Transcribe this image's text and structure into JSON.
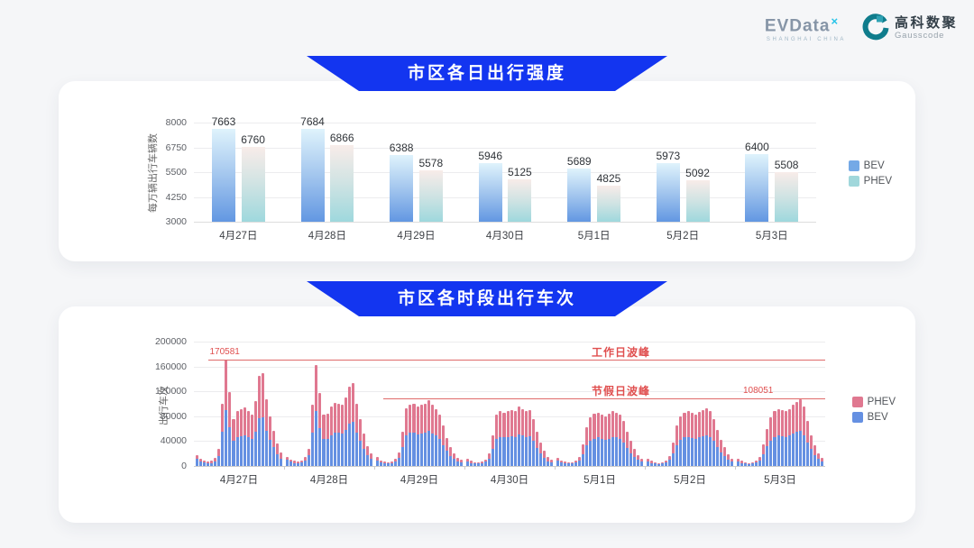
{
  "header": {
    "evdata": {
      "text": "EVData",
      "sup": "×",
      "subtext": "SHANGHAI CHINA"
    },
    "gausscode": {
      "cn": "高科数聚",
      "en": "Gausscode"
    }
  },
  "colors": {
    "banner_blue": "#1335f0",
    "annotation_red": "#e04f4f",
    "annotation_line_red": "#e06a6a",
    "gausscode_teal_dark": "#0f7c8c",
    "gausscode_teal_light": "#2fa3b5"
  },
  "chart_data": [
    {
      "type": "bar",
      "title": "市区各日出行强度",
      "ylabel": "每万辆出行车辆数",
      "xlabel": "",
      "ylim": [
        3000,
        8000
      ],
      "yticks": [
        3000,
        4250,
        5500,
        6750,
        8000
      ],
      "grid": true,
      "legend_position": "right",
      "categories": [
        "4月27日",
        "4月28日",
        "4月29日",
        "4月30日",
        "5月1日",
        "5月2日",
        "5月3日"
      ],
      "series": [
        {
          "name": "BEV",
          "legend_color": "#74a9e6",
          "gradient": [
            "#dff3fc",
            "#a3c6ee",
            "#6297e2"
          ],
          "values": [
            7663,
            7684,
            6388,
            5946,
            5689,
            5973,
            6400
          ]
        },
        {
          "name": "PHEV",
          "legend_color": "#a0d7db",
          "gradient": [
            "#f8ece9",
            "#cfe3e3",
            "#9ed8dd"
          ],
          "values": [
            6760,
            6866,
            5578,
            5125,
            4825,
            5092,
            5508
          ]
        }
      ]
    },
    {
      "type": "stacked-bar",
      "title": "市区各时段出行车次",
      "ylabel": "出行车次",
      "xlabel": "",
      "ylim": [
        0,
        200000
      ],
      "yticks": [
        0,
        40000,
        80000,
        120000,
        160000,
        200000
      ],
      "grid": true,
      "legend_position": "right",
      "hours_per_day": 24,
      "categories": [
        "4月27日",
        "4月28日",
        "4月29日",
        "4月30日",
        "5月1日",
        "5月2日",
        "5月3日"
      ],
      "series": [
        {
          "name": "BEV",
          "color": "#6590e2",
          "days": [
            [
              12000,
              8000,
              6000,
              5000,
              5000,
              8000,
              16000,
              55000,
              90000,
              62000,
              40000,
              46000,
              48000,
              50000,
              47000,
              43000,
              55000,
              77000,
              79000,
              57000,
              42000,
              30000,
              19000,
              12000
            ],
            [
              10000,
              7000,
              5000,
              5000,
              6000,
              9000,
              17000,
              54000,
              88000,
              61000,
              44000,
              44000,
              50000,
              53000,
              53000,
              52000,
              58000,
              68000,
              71000,
              53000,
              40000,
              27000,
              17000,
              11000
            ],
            [
              9000,
              6000,
              5000,
              4000,
              5000,
              7000,
              13000,
              30000,
              50000,
              53000,
              53000,
              51000,
              52000,
              53000,
              56000,
              52000,
              49000,
              44000,
              34000,
              24000,
              16000,
              11000,
              7000,
              6000
            ],
            [
              8000,
              5000,
              4000,
              4000,
              5000,
              7000,
              12000,
              27000,
              44000,
              47000,
              46000,
              47000,
              48000,
              47000,
              51000,
              49000,
              47000,
              48000,
              40000,
              29000,
              20000,
              13000,
              8000,
              6000
            ],
            [
              9000,
              6000,
              5000,
              4000,
              4000,
              6000,
              9000,
              19000,
              33000,
              41000,
              44000,
              46000,
              43000,
              42000,
              44000,
              47000,
              46000,
              43000,
              38000,
              29000,
              21000,
              15000,
              10000,
              7000
            ],
            [
              8000,
              5000,
              4000,
              3000,
              4000,
              6000,
              10000,
              20000,
              34000,
              42000,
              46000,
              47000,
              45000,
              44000,
              46000,
              48000,
              49000,
              47000,
              40000,
              31000,
              22000,
              16000,
              10000,
              7000
            ],
            [
              7000,
              5000,
              4000,
              3000,
              4000,
              6000,
              9000,
              19000,
              32000,
              41000,
              47000,
              49000,
              48000,
              47000,
              49000,
              52000,
              55000,
              57000,
              50000,
              38000,
              27000,
              18000,
              11000,
              7000
            ]
          ]
        },
        {
          "name": "PHEV",
          "color": "#e07890",
          "days": [
            [
              6000,
              4000,
              3000,
              2000,
              3000,
              5000,
              11000,
              45000,
              80581,
              57000,
              36000,
              42000,
              43000,
              44000,
              42000,
              39000,
              49000,
              68000,
              70000,
              51000,
              38000,
              26000,
              17000,
              10000
            ],
            [
              5000,
              3000,
              3000,
              2000,
              3000,
              5000,
              11000,
              44000,
              75000,
              56000,
              39000,
              40000,
              45000,
              48000,
              47000,
              46000,
              52000,
              60000,
              63000,
              47000,
              35000,
              25000,
              15000,
              9000
            ],
            [
              5000,
              3000,
              2000,
              2000,
              2000,
              4000,
              9000,
              25000,
              43000,
              46000,
              47000,
              45000,
              46000,
              47000,
              50000,
              47000,
              43000,
              39000,
              31000,
              21000,
              14000,
              9000,
              6000,
              4000
            ],
            [
              4000,
              3000,
              2000,
              2000,
              2000,
              3000,
              8000,
              23000,
              38000,
              41000,
              40000,
              41000,
              42000,
              41000,
              44000,
              43000,
              41000,
              42000,
              35000,
              26000,
              18000,
              12000,
              7000,
              4000
            ],
            [
              4000,
              3000,
              2000,
              2000,
              2000,
              3000,
              6000,
              16000,
              29000,
              37000,
              40000,
              40000,
              39000,
              38000,
              40000,
              41000,
              40000,
              39000,
              34000,
              26000,
              19000,
              13000,
              8000,
              5000
            ],
            [
              4000,
              3000,
              2000,
              2000,
              2000,
              3000,
              6000,
              18000,
              31000,
              38000,
              40000,
              41000,
              40000,
              39000,
              41000,
              42000,
              44000,
              41000,
              36000,
              27000,
              20000,
              14000,
              9000,
              5000
            ],
            [
              4000,
              3000,
              2000,
              2000,
              2000,
              3000,
              6000,
              16000,
              28000,
              37000,
              41000,
              43000,
              42000,
              41000,
              43000,
              46000,
              48000,
              51051,
              45000,
              34000,
              23000,
              15000,
              9000,
              6000
            ]
          ]
        }
      ],
      "legend": [
        "PHEV",
        "BEV"
      ],
      "annotations": {
        "workday_peak": {
          "label": "工作日波峰",
          "value": 170581,
          "value_label": "170581",
          "line_start_pct": 2.3,
          "label_x_pct": 63,
          "value_label_x_pct": 2.5
        },
        "holiday_peak": {
          "label": "节假日波峰",
          "value": 108051,
          "value_label": "108051",
          "line_start_pct": 30,
          "label_x_pct": 63,
          "value_label_x_pct": 87
        }
      }
    }
  ]
}
